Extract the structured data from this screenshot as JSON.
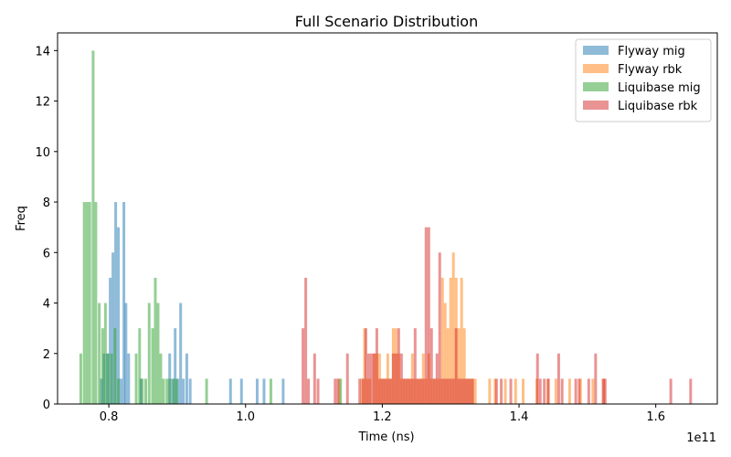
{
  "chart_data": {
    "type": "histogram",
    "title": "Full Scenario Distribution",
    "xlabel": "Time (ns)",
    "ylabel": "Freq",
    "x_offset_label": "1e11",
    "xlim": [
      0.725,
      1.69
    ],
    "ylim": [
      0,
      14.7
    ],
    "bar_width": 0.004,
    "x_ticks": [
      {
        "value": 0.8,
        "label": "0.8"
      },
      {
        "value": 1.0,
        "label": "1.0"
      },
      {
        "value": 1.2,
        "label": "1.2"
      },
      {
        "value": 1.4,
        "label": "1.4"
      },
      {
        "value": 1.6,
        "label": "1.6"
      }
    ],
    "y_ticks": [
      {
        "value": 0,
        "label": "0"
      },
      {
        "value": 2,
        "label": "2"
      },
      {
        "value": 4,
        "label": "4"
      },
      {
        "value": 6,
        "label": "6"
      },
      {
        "value": 8,
        "label": "8"
      },
      {
        "value": 10,
        "label": "10"
      },
      {
        "value": 12,
        "label": "12"
      },
      {
        "value": 14,
        "label": "14"
      }
    ],
    "legend_position": "top-right",
    "series": [
      {
        "name": "Flyway mig",
        "color": "#1f77b4",
        "bins": [
          [
            0.787,
            1
          ],
          [
            0.791,
            2
          ],
          [
            0.796,
            2
          ],
          [
            0.8,
            5
          ],
          [
            0.804,
            6
          ],
          [
            0.808,
            8
          ],
          [
            0.812,
            7
          ],
          [
            0.816,
            1
          ],
          [
            0.82,
            8
          ],
          [
            0.823,
            4
          ],
          [
            0.827,
            2
          ],
          [
            0.845,
            1
          ],
          [
            0.887,
            2
          ],
          [
            0.891,
            1
          ],
          [
            0.895,
            3
          ],
          [
            0.899,
            1
          ],
          [
            0.903,
            4
          ],
          [
            0.907,
            1
          ],
          [
            0.912,
            2
          ],
          [
            0.917,
            1
          ],
          [
            0.976,
            1
          ],
          [
            0.992,
            1
          ],
          [
            1.015,
            1
          ],
          [
            1.025,
            1
          ],
          [
            1.053,
            1
          ]
        ]
      },
      {
        "name": "Flyway rbk",
        "color": "#ff7f0e",
        "bins": [
          [
            1.135,
            1
          ],
          [
            1.168,
            1
          ],
          [
            1.172,
            3
          ],
          [
            1.176,
            1
          ],
          [
            1.18,
            1
          ],
          [
            1.186,
            2
          ],
          [
            1.19,
            2
          ],
          [
            1.194,
            2
          ],
          [
            1.198,
            1
          ],
          [
            1.202,
            1
          ],
          [
            1.206,
            2
          ],
          [
            1.21,
            1
          ],
          [
            1.214,
            3
          ],
          [
            1.218,
            3
          ],
          [
            1.222,
            2
          ],
          [
            1.226,
            1
          ],
          [
            1.23,
            1
          ],
          [
            1.234,
            1
          ],
          [
            1.238,
            1
          ],
          [
            1.242,
            2
          ],
          [
            1.246,
            1
          ],
          [
            1.25,
            1
          ],
          [
            1.254,
            1
          ],
          [
            1.258,
            2
          ],
          [
            1.262,
            1
          ],
          [
            1.266,
            2
          ],
          [
            1.27,
            1
          ],
          [
            1.274,
            1
          ],
          [
            1.278,
            1
          ],
          [
            1.282,
            1
          ],
          [
            1.286,
            5
          ],
          [
            1.29,
            4
          ],
          [
            1.294,
            3
          ],
          [
            1.298,
            5
          ],
          [
            1.302,
            6
          ],
          [
            1.306,
            5
          ],
          [
            1.31,
            3
          ],
          [
            1.314,
            5
          ],
          [
            1.318,
            3
          ],
          [
            1.322,
            1
          ],
          [
            1.326,
            1
          ],
          [
            1.33,
            1
          ],
          [
            1.334,
            1
          ],
          [
            1.355,
            1
          ],
          [
            1.363,
            1
          ],
          [
            1.378,
            1
          ],
          [
            1.393,
            1
          ],
          [
            1.404,
            1
          ],
          [
            1.424,
            1
          ],
          [
            1.44,
            1
          ],
          [
            1.452,
            1
          ],
          [
            1.472,
            1
          ],
          [
            1.488,
            1
          ],
          [
            1.506,
            1
          ],
          [
            1.522,
            1
          ]
        ]
      },
      {
        "name": "Liquibase mig",
        "color": "#2ca02c",
        "bins": [
          [
            0.757,
            2
          ],
          [
            0.762,
            8
          ],
          [
            0.766,
            8
          ],
          [
            0.77,
            8
          ],
          [
            0.775,
            14
          ],
          [
            0.779,
            8
          ],
          [
            0.784,
            4
          ],
          [
            0.789,
            3
          ],
          [
            0.793,
            4
          ],
          [
            0.797,
            2
          ],
          [
            0.802,
            2
          ],
          [
            0.807,
            3
          ],
          [
            0.812,
            1
          ],
          [
            0.838,
            2
          ],
          [
            0.843,
            3
          ],
          [
            0.847,
            1
          ],
          [
            0.852,
            1
          ],
          [
            0.857,
            4
          ],
          [
            0.862,
            3
          ],
          [
            0.866,
            5
          ],
          [
            0.87,
            4
          ],
          [
            0.874,
            2
          ],
          [
            0.878,
            1
          ],
          [
            0.883,
            1
          ],
          [
            0.887,
            1
          ],
          [
            0.893,
            1
          ],
          [
            0.897,
            1
          ],
          [
            0.941,
            1
          ],
          [
            1.035,
            1
          ],
          [
            1.137,
            1
          ]
        ]
      },
      {
        "name": "Liquibase rbk",
        "color": "#d62728",
        "bins": [
          [
            1.082,
            3
          ],
          [
            1.086,
            5
          ],
          [
            1.09,
            1
          ],
          [
            1.099,
            2
          ],
          [
            1.104,
            1
          ],
          [
            1.129,
            1
          ],
          [
            1.133,
            1
          ],
          [
            1.147,
            2
          ],
          [
            1.165,
            1
          ],
          [
            1.17,
            1
          ],
          [
            1.174,
            3
          ],
          [
            1.178,
            2
          ],
          [
            1.182,
            2
          ],
          [
            1.186,
            2
          ],
          [
            1.19,
            3
          ],
          [
            1.194,
            1
          ],
          [
            1.198,
            1
          ],
          [
            1.202,
            1
          ],
          [
            1.206,
            1
          ],
          [
            1.21,
            1
          ],
          [
            1.214,
            2
          ],
          [
            1.218,
            2
          ],
          [
            1.222,
            3
          ],
          [
            1.226,
            2
          ],
          [
            1.23,
            1
          ],
          [
            1.234,
            1
          ],
          [
            1.238,
            1
          ],
          [
            1.242,
            1
          ],
          [
            1.246,
            3
          ],
          [
            1.25,
            1
          ],
          [
            1.254,
            1
          ],
          [
            1.258,
            1
          ],
          [
            1.262,
            7
          ],
          [
            1.266,
            7
          ],
          [
            1.27,
            3
          ],
          [
            1.274,
            1
          ],
          [
            1.278,
            2
          ],
          [
            1.282,
            6
          ],
          [
            1.286,
            1
          ],
          [
            1.29,
            1
          ],
          [
            1.294,
            1
          ],
          [
            1.298,
            1
          ],
          [
            1.302,
            1
          ],
          [
            1.306,
            3
          ],
          [
            1.31,
            1
          ],
          [
            1.314,
            1
          ],
          [
            1.318,
            1
          ],
          [
            1.322,
            1
          ],
          [
            1.326,
            1
          ],
          [
            1.33,
            1
          ],
          [
            1.365,
            1
          ],
          [
            1.372,
            1
          ],
          [
            1.386,
            1
          ],
          [
            1.425,
            2
          ],
          [
            1.429,
            1
          ],
          [
            1.435,
            1
          ],
          [
            1.441,
            1
          ],
          [
            1.456,
            2
          ],
          [
            1.461,
            1
          ],
          [
            1.481,
            1
          ],
          [
            1.486,
            1
          ],
          [
            1.5,
            1
          ],
          [
            1.51,
            2
          ],
          [
            1.521,
            1
          ],
          [
            1.524,
            1
          ],
          [
            1.62,
            1
          ],
          [
            1.649,
            1
          ]
        ]
      }
    ]
  }
}
